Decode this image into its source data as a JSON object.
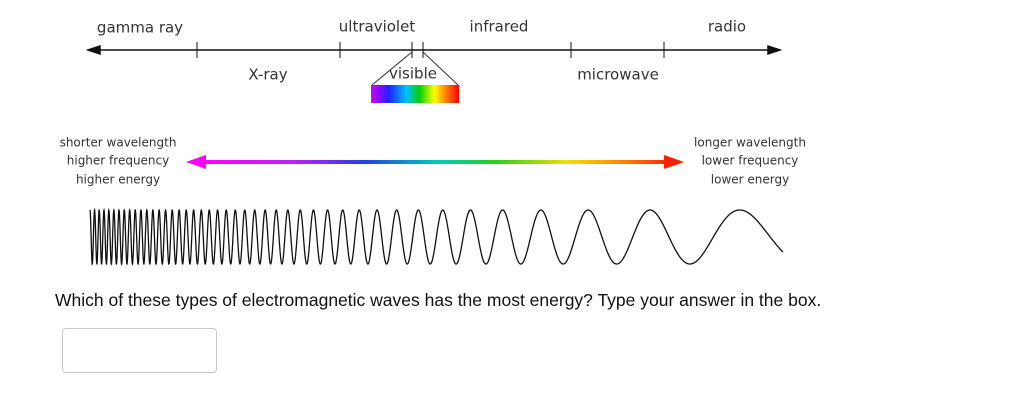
{
  "spectrum": {
    "top_labels": [
      "gamma ray",
      "ultraviolet",
      "infrared",
      "radio"
    ],
    "bottom_labels": [
      "X-ray",
      "visible",
      "microwave"
    ]
  },
  "left_text": [
    "shorter wavelength",
    "higher frequency",
    "higher energy"
  ],
  "right_text": [
    "longer wavelength",
    "lower frequency",
    "lower energy"
  ],
  "question": "Which of these types of electromagnetic waves has the most energy? Type your answer in the box."
}
